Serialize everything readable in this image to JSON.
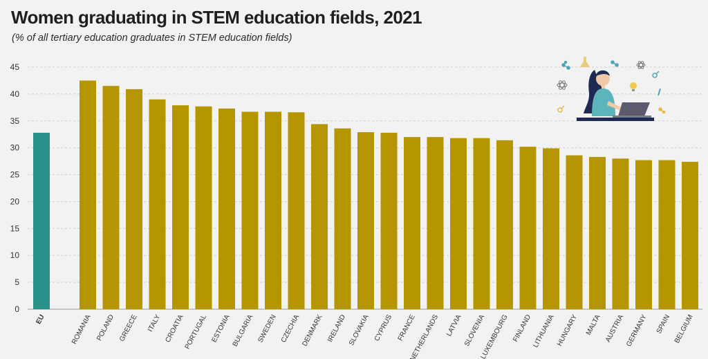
{
  "title": "Women graduating in STEM education fields, 2021",
  "subtitle": "(% of all tertiary education graduates in STEM education fields)",
  "colors": {
    "eu": "#2a918b",
    "country": "#b59500",
    "grid": "#cfcfcf",
    "background": "#f2f2f2"
  },
  "illustration": "woman-at-laptop-with-science-icons",
  "chart_data": {
    "type": "bar",
    "title": "Women graduating in STEM education fields, 2021",
    "subtitle": "(% of all tertiary education graduates in STEM education fields)",
    "xlabel": "",
    "ylabel": "",
    "ylim": [
      0,
      45
    ],
    "yticks": [
      0,
      5,
      10,
      15,
      20,
      25,
      30,
      35,
      40,
      45
    ],
    "grid": true,
    "legend": "none",
    "categories": [
      "EU",
      "ROMANIA",
      "POLAND",
      "GREECE",
      "ITALY",
      "CROATIA",
      "PORTUGAL",
      "ESTONIA",
      "BULGARIA",
      "SWEDEN",
      "CZECHIA",
      "DENMARK",
      "IRELAND",
      "SLOVAKIA",
      "CYPRUS",
      "FRANCE",
      "NETHERLANDS",
      "LATVIA",
      "SLOVENIA",
      "LUXEMBOURG",
      "FINLAND",
      "LITHUANIA",
      "HUNGARY",
      "MALTA",
      "AUSTRIA",
      "GERMANY",
      "SPAIN",
      "BELGIUM"
    ],
    "values": [
      32.8,
      42.5,
      41.5,
      40.9,
      39.0,
      37.9,
      37.7,
      37.3,
      36.7,
      36.7,
      36.6,
      34.4,
      33.6,
      32.9,
      32.8,
      32.0,
      32.0,
      31.8,
      31.8,
      31.4,
      30.2,
      29.9,
      28.6,
      28.3,
      28.0,
      27.7,
      27.7,
      27.4
    ]
  }
}
